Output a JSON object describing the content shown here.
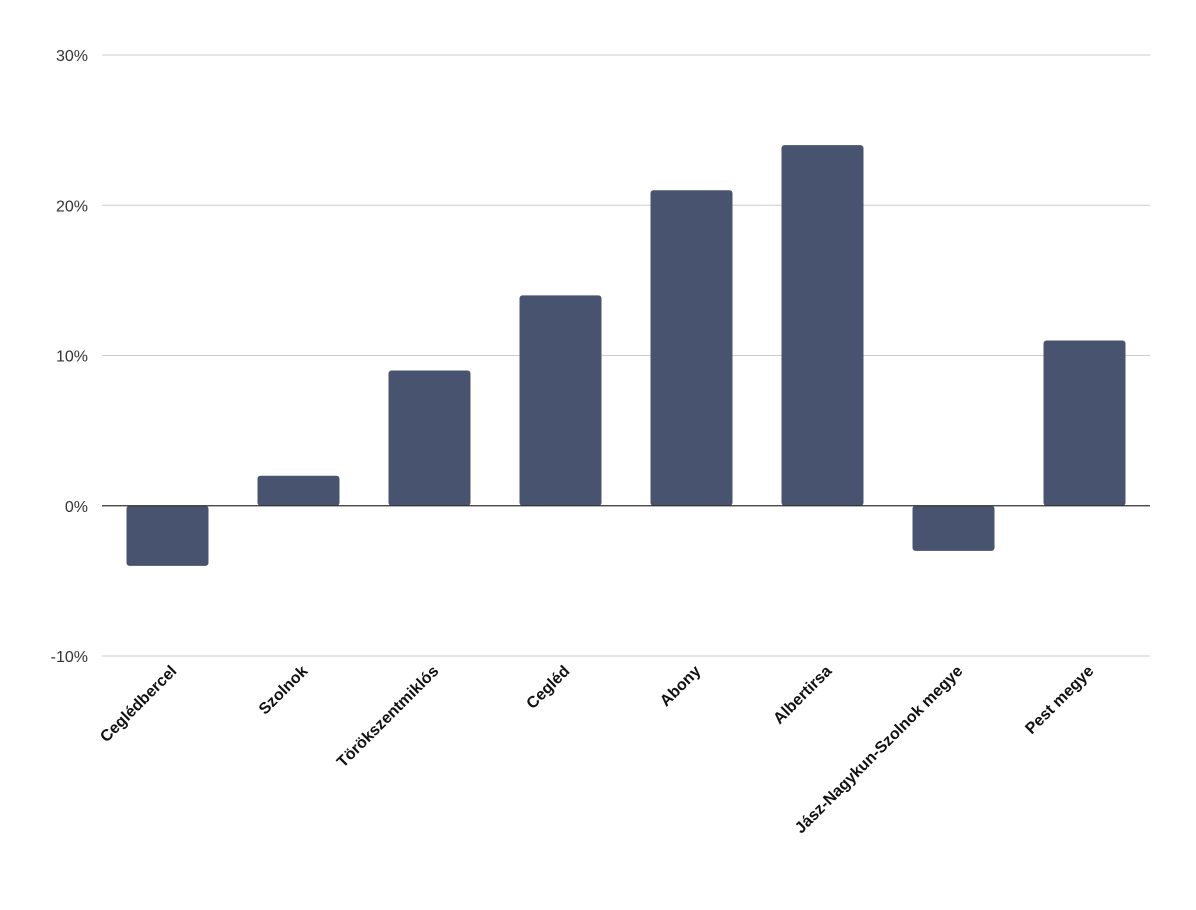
{
  "chart_data": {
    "type": "bar",
    "title": "",
    "xlabel": "",
    "ylabel": "",
    "categories": [
      "Ceglédbercel",
      "Szolnok",
      "Törökszentmiklós",
      "Cegléd",
      "Abony",
      "Albertirsa",
      "Jász-Nagykun-Szolnok megye",
      "Pest megye"
    ],
    "values": [
      -4,
      2,
      9,
      14,
      21,
      24,
      -3,
      11
    ],
    "unit": "%",
    "ylim": [
      -10,
      30
    ],
    "yticks": [
      -10,
      0,
      10,
      20,
      30
    ],
    "ytick_labels": [
      "-10%",
      "0%",
      "10%",
      "20%",
      "30%"
    ],
    "grid": true,
    "legend": "none",
    "bar_color": "#48546f"
  }
}
